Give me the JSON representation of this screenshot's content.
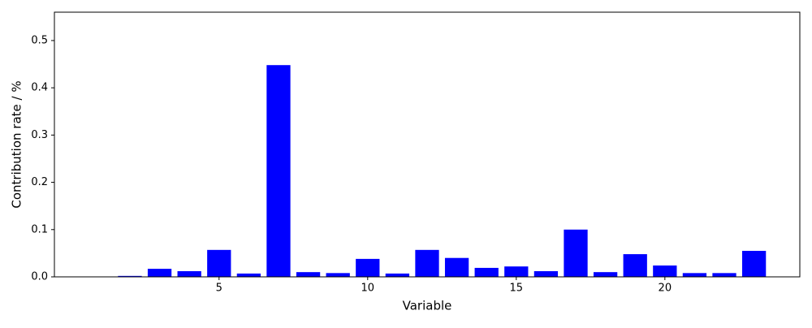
{
  "chart_data": {
    "type": "bar",
    "xlabel": "Variable",
    "ylabel": "Contribution rate / %",
    "x": [
      1,
      2,
      3,
      4,
      5,
      6,
      7,
      8,
      9,
      10,
      11,
      12,
      13,
      14,
      15,
      16,
      17,
      18,
      19,
      20,
      21,
      22,
      23
    ],
    "values": [
      0,
      0.002,
      0.017,
      0.012,
      0.057,
      0.007,
      0.448,
      0.01,
      0.008,
      0.038,
      0.007,
      0.057,
      0.04,
      0.019,
      0.022,
      0.012,
      0.1,
      0.01,
      0.048,
      0.024,
      0.008,
      0.008,
      0.055
    ],
    "color": "#0000ff",
    "xlim": [
      -0.54,
      24.54
    ],
    "xticks": [
      5,
      10,
      15,
      20
    ],
    "ylim": [
      0,
      0.56
    ],
    "yticks": [
      {
        "value": 0,
        "label": "0.0"
      },
      0.1,
      0.2,
      0.3,
      0.4,
      0.5
    ],
    "grid": false
  }
}
